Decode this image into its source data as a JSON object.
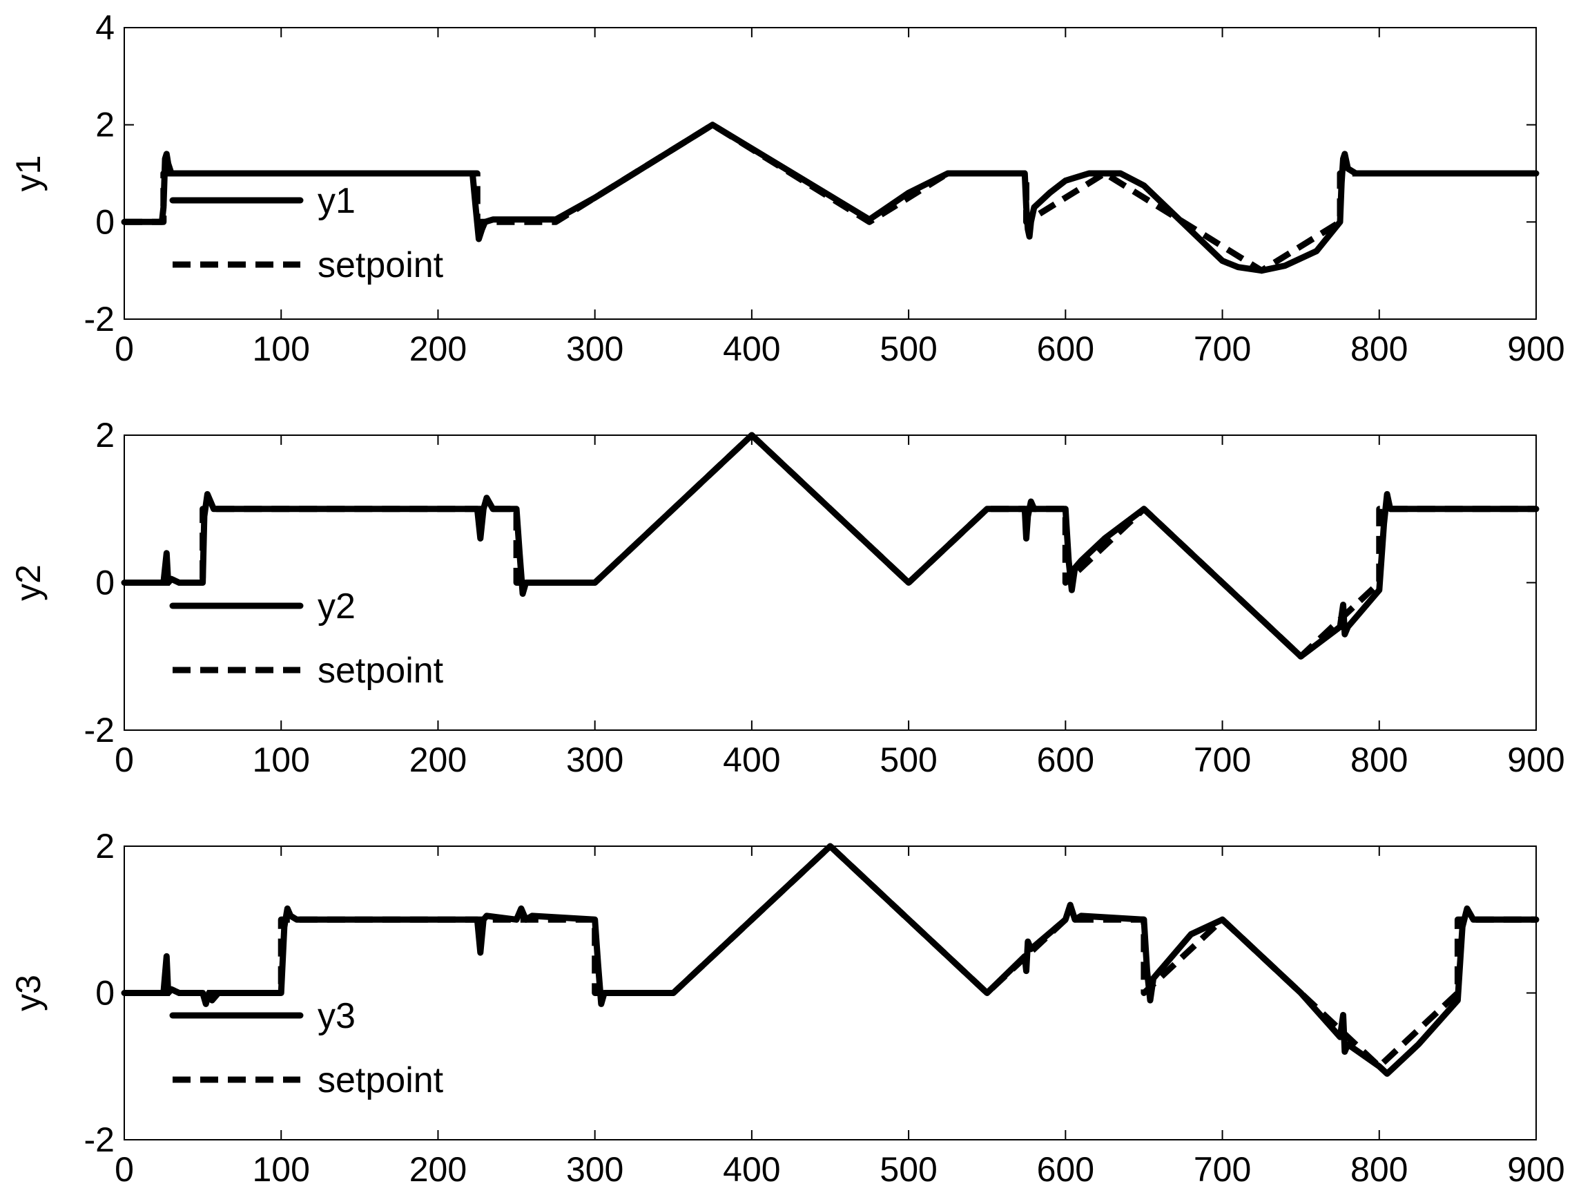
{
  "chart_data": [
    {
      "type": "line",
      "ylabel": "y1",
      "xlim": [
        0,
        900
      ],
      "ylim": [
        -2,
        4
      ],
      "xticks": [
        0,
        100,
        200,
        300,
        400,
        500,
        600,
        700,
        800,
        900
      ],
      "yticks": [
        -2,
        0,
        2,
        4
      ],
      "legend": {
        "placement": "upper-left",
        "entries": [
          "y1",
          "setpoint"
        ]
      },
      "series": [
        {
          "name": "y1",
          "style": "solid",
          "x": [
            0,
            24,
            25,
            26,
            27,
            28,
            30,
            35,
            60,
            110,
            220,
            222,
            224,
            226,
            228,
            230,
            235,
            250,
            270,
            275,
            300,
            375,
            475,
            500,
            525,
            550,
            574,
            575,
            576,
            577,
            578,
            580,
            590,
            600,
            615,
            635,
            650,
            700,
            710,
            725,
            740,
            760,
            775,
            776,
            777,
            778,
            780,
            785,
            800,
            900
          ],
          "y": [
            0,
            0,
            0.3,
            1.3,
            1.4,
            1.2,
            1.0,
            1.0,
            1.0,
            1.0,
            1.0,
            1.0,
            0.3,
            -0.35,
            -0.15,
            0.0,
            0.05,
            0.05,
            0.05,
            0.05,
            0.5,
            2.0,
            0.05,
            0.6,
            1.0,
            1.0,
            1.0,
            0.3,
            -0.15,
            -0.3,
            0.0,
            0.3,
            0.6,
            0.85,
            1.0,
            1.0,
            0.75,
            -0.8,
            -0.93,
            -1.0,
            -0.9,
            -0.6,
            0.0,
            0.8,
            1.3,
            1.4,
            1.1,
            1.0,
            1.0,
            1.0
          ]
        },
        {
          "name": "setpoint",
          "style": "dashed",
          "x": [
            0,
            25,
            25,
            225,
            225,
            275,
            375,
            475,
            525,
            575,
            575,
            625,
            725,
            775,
            775,
            900
          ],
          "y": [
            0,
            0,
            1,
            1,
            0,
            0,
            2,
            0,
            1,
            1,
            0,
            1,
            -1,
            0,
            1,
            1
          ]
        }
      ]
    },
    {
      "type": "line",
      "ylabel": "y2",
      "xlim": [
        0,
        900
      ],
      "ylim": [
        -2,
        2
      ],
      "xticks": [
        0,
        100,
        200,
        300,
        400,
        500,
        600,
        700,
        800,
        900
      ],
      "yticks": [
        -2,
        0,
        2
      ],
      "legend": {
        "placement": "lower-left",
        "entries": [
          "y2",
          "setpoint"
        ]
      },
      "series": [
        {
          "name": "y2",
          "style": "solid",
          "x": [
            0,
            25,
            27,
            28,
            30,
            35,
            50,
            51,
            53,
            55,
            57,
            60,
            110,
            225,
            227,
            229,
            231,
            235,
            250,
            252,
            254,
            256,
            260,
            300,
            400,
            500,
            550,
            574,
            575,
            576,
            578,
            580,
            600,
            602,
            604,
            606,
            610,
            625,
            650,
            750,
            775,
            777,
            778,
            780,
            800,
            803,
            805,
            807,
            810,
            860,
            900
          ],
          "y": [
            0,
            0,
            0.4,
            0.0,
            0.05,
            0.0,
            0.0,
            0.9,
            1.2,
            1.1,
            1.0,
            1.0,
            1.0,
            1.0,
            0.6,
            1.0,
            1.15,
            1.0,
            1.0,
            0.4,
            -0.15,
            0.0,
            0.0,
            0.0,
            2.0,
            0.0,
            1.0,
            1.0,
            0.6,
            0.9,
            1.1,
            1.0,
            1.0,
            0.3,
            -0.1,
            0.2,
            0.3,
            0.6,
            1.0,
            -1.0,
            -0.6,
            -0.3,
            -0.7,
            -0.6,
            -0.1,
            0.8,
            1.2,
            1.0,
            1.0,
            1.0,
            1.0
          ]
        },
        {
          "name": "setpoint",
          "style": "dashed",
          "x": [
            0,
            50,
            50,
            250,
            250,
            300,
            400,
            500,
            550,
            600,
            600,
            650,
            750,
            800,
            800,
            900
          ],
          "y": [
            0,
            0,
            1,
            1,
            0,
            0,
            2,
            0,
            1,
            1,
            0,
            1,
            -1,
            0,
            1,
            1
          ]
        }
      ]
    },
    {
      "type": "line",
      "ylabel": "y3",
      "xlim": [
        0,
        900
      ],
      "ylim": [
        -2,
        2
      ],
      "xticks": [
        0,
        100,
        200,
        300,
        400,
        500,
        600,
        700,
        800,
        900
      ],
      "yticks": [
        -2,
        0,
        2
      ],
      "legend": {
        "placement": "lower-left",
        "entries": [
          "y3",
          "setpoint"
        ]
      },
      "series": [
        {
          "name": "y3",
          "style": "solid",
          "x": [
            0,
            25,
            27,
            28,
            30,
            35,
            50,
            52,
            54,
            56,
            60,
            100,
            102,
            104,
            106,
            110,
            225,
            227,
            229,
            231,
            250,
            253,
            256,
            260,
            300,
            302,
            304,
            306,
            310,
            350,
            450,
            550,
            574,
            575,
            576,
            578,
            600,
            603,
            606,
            610,
            650,
            652,
            654,
            656,
            660,
            680,
            700,
            750,
            775,
            777,
            778,
            780,
            800,
            805,
            810,
            825,
            850,
            853,
            856,
            860,
            900
          ],
          "y": [
            0,
            0,
            0.5,
            0.0,
            0.05,
            0.0,
            0.0,
            -0.15,
            0.0,
            -0.1,
            0.0,
            0.0,
            0.9,
            1.15,
            1.05,
            1.0,
            1.0,
            0.55,
            1.0,
            1.05,
            1.0,
            1.15,
            1.0,
            1.05,
            1.0,
            0.4,
            -0.15,
            0.0,
            0.0,
            0.0,
            2.0,
            0.0,
            0.5,
            0.3,
            0.7,
            0.6,
            1.0,
            1.2,
            1.0,
            1.05,
            1.0,
            0.3,
            -0.1,
            0.2,
            0.3,
            0.8,
            1.0,
            0.0,
            -0.6,
            -0.3,
            -0.8,
            -0.7,
            -1.0,
            -1.1,
            -1.0,
            -0.7,
            -0.1,
            0.9,
            1.15,
            1.0,
            1.0
          ]
        },
        {
          "name": "setpoint",
          "style": "dashed",
          "x": [
            0,
            100,
            100,
            300,
            300,
            350,
            450,
            550,
            600,
            650,
            650,
            700,
            800,
            850,
            850,
            900
          ],
          "y": [
            0,
            0,
            1,
            1,
            0,
            0,
            2,
            0,
            1,
            1,
            0,
            1,
            -1,
            0,
            1,
            1
          ]
        }
      ]
    }
  ]
}
